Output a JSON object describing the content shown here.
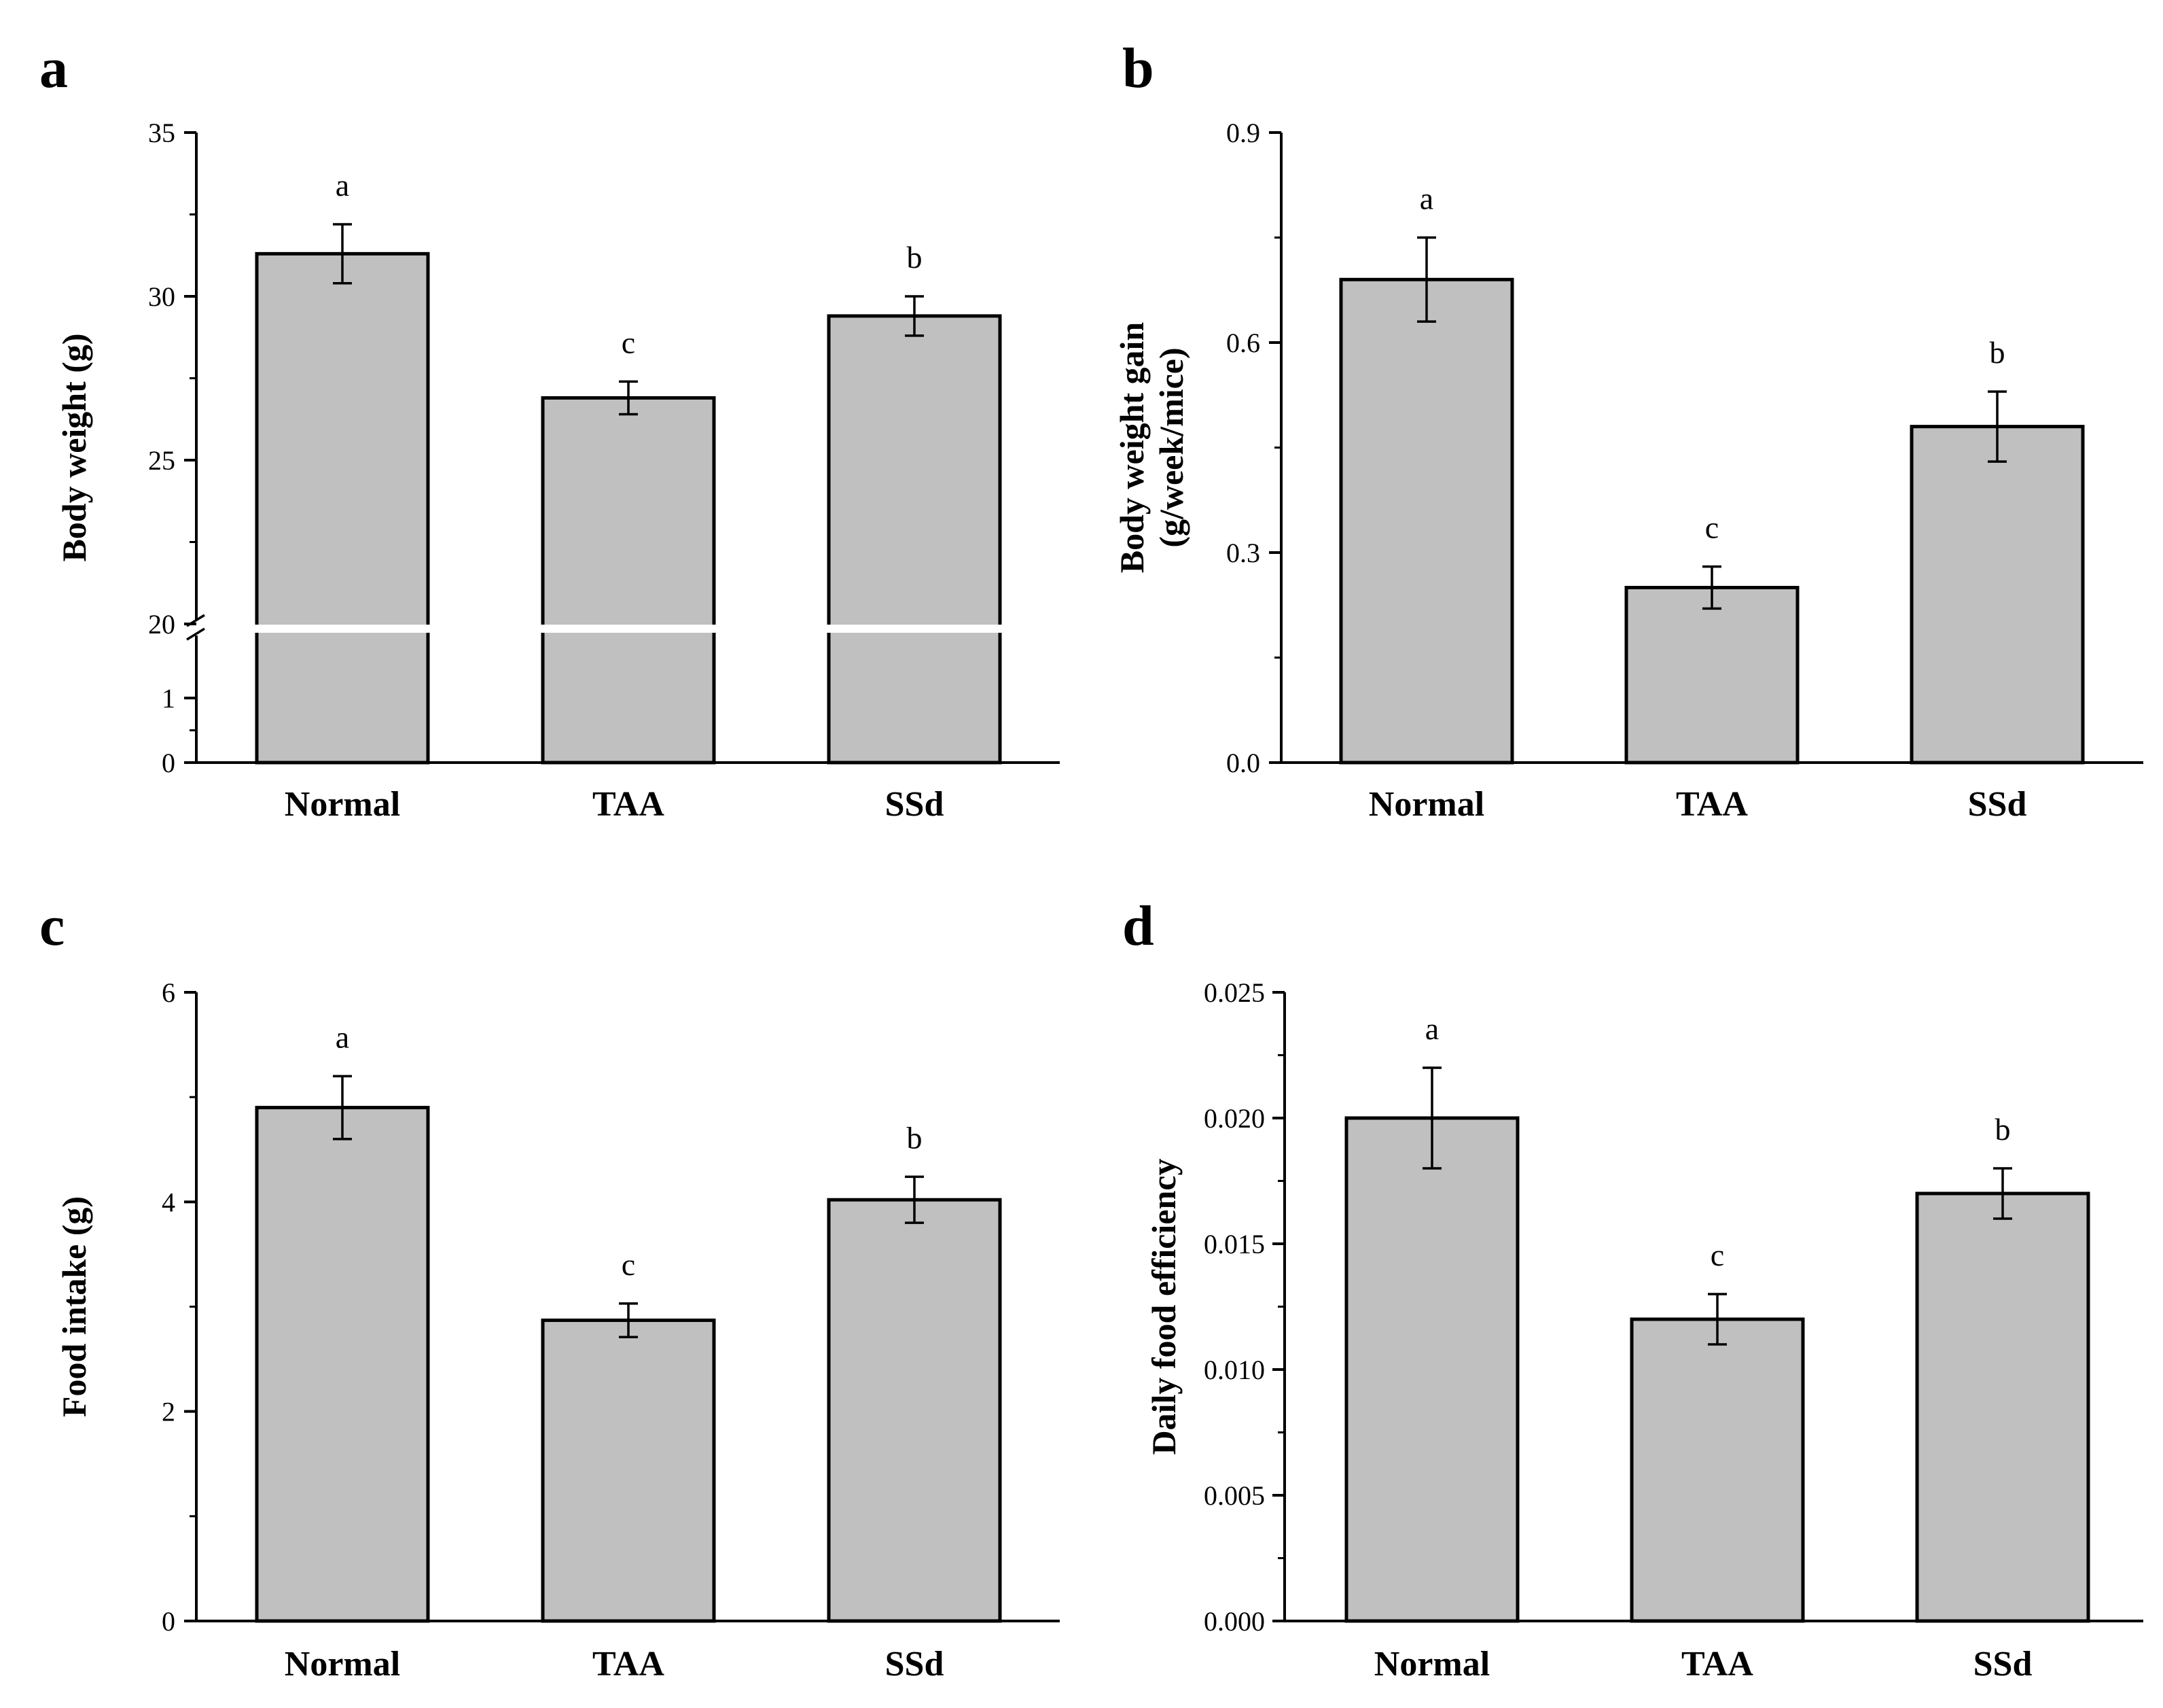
{
  "colors": {
    "bar_fill": "#c0c0c0",
    "bar_stroke": "#000000",
    "axis": "#000000",
    "background": "#ffffff"
  },
  "chart_data": [
    {
      "id": "a",
      "panel_label": "a",
      "type": "bar",
      "categories": [
        "Normal",
        "TAA",
        "SSd"
      ],
      "values": [
        31.3,
        26.9,
        29.4
      ],
      "errors": [
        0.9,
        0.5,
        0.6
      ],
      "significance": [
        "a",
        "c",
        "b"
      ],
      "ylabel": "Body weight (g)",
      "ylabel_lines": [
        "Body weight (g)"
      ],
      "xlabel": "",
      "ylim": [
        0,
        35
      ],
      "axis_break": {
        "lower": [
          0,
          2
        ],
        "upper": [
          20,
          35
        ]
      },
      "yticks_lower": [
        0,
        1
      ],
      "yticks_upper": [
        20,
        25,
        30,
        35
      ],
      "tick_labels_lower": [
        "0",
        "1"
      ],
      "tick_labels_upper": [
        "20",
        "25",
        "30",
        "35"
      ]
    },
    {
      "id": "b",
      "panel_label": "b",
      "type": "bar",
      "categories": [
        "Normal",
        "TAA",
        "SSd"
      ],
      "values": [
        0.69,
        0.25,
        0.48
      ],
      "errors": [
        0.06,
        0.03,
        0.05
      ],
      "significance": [
        "a",
        "c",
        "b"
      ],
      "ylabel": "Body weight gain (g/week/mice)",
      "ylabel_lines": [
        "Body weight gain",
        "(g/week/mice)"
      ],
      "xlabel": "",
      "ylim": [
        0,
        0.9
      ],
      "yticks": [
        0,
        0.3,
        0.6,
        0.9
      ],
      "tick_labels": [
        "0.0",
        "0.3",
        "0.6",
        "0.9"
      ]
    },
    {
      "id": "c",
      "panel_label": "c",
      "type": "bar",
      "categories": [
        "Normal",
        "TAA",
        "SSd"
      ],
      "values": [
        4.9,
        2.87,
        4.02
      ],
      "errors": [
        0.3,
        0.16,
        0.22
      ],
      "significance": [
        "a",
        "c",
        "b"
      ],
      "ylabel": "Food intake (g)",
      "ylabel_lines": [
        "Food intake (g)"
      ],
      "xlabel": "",
      "ylim": [
        0,
        6
      ],
      "yticks": [
        0,
        2,
        4,
        6
      ],
      "tick_labels": [
        "0",
        "2",
        "4",
        "6"
      ]
    },
    {
      "id": "d",
      "panel_label": "d",
      "type": "bar",
      "categories": [
        "Normal",
        "TAA",
        "SSd"
      ],
      "values": [
        0.02,
        0.012,
        0.017
      ],
      "errors": [
        0.002,
        0.001,
        0.001
      ],
      "significance": [
        "a",
        "c",
        "b"
      ],
      "ylabel": "Daily food efficiency",
      "ylabel_lines": [
        "Daily food efficiency"
      ],
      "xlabel": "",
      "ylim": [
        0,
        0.025
      ],
      "yticks": [
        0,
        0.005,
        0.01,
        0.015,
        0.02,
        0.025
      ],
      "tick_labels": [
        "0.000",
        "0.005",
        "0.010",
        "0.015",
        "0.020",
        "0.025"
      ]
    }
  ]
}
